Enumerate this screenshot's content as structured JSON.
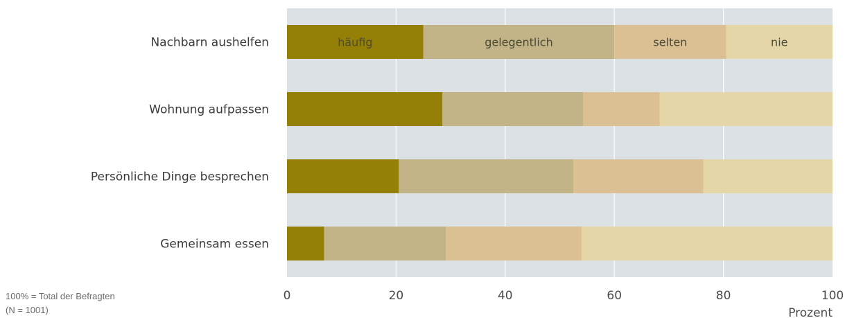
{
  "chart_data": {
    "type": "bar",
    "orientation": "horizontal",
    "stacked": true,
    "categories": [
      "Nachbarn aushelfen",
      "Wohnung aufpassen",
      "Persönliche Dinge besprechen",
      "Gemeinsam essen"
    ],
    "series": [
      {
        "name": "häufig",
        "color": "#947f07",
        "values": [
          25,
          28.5,
          20.5,
          6.8
        ]
      },
      {
        "name": "gelegentlich",
        "color": "#c2b486",
        "values": [
          35,
          25.8,
          32,
          22.3
        ]
      },
      {
        "name": "selten",
        "color": "#dbc093",
        "values": [
          20.5,
          14,
          23.8,
          24.9
        ]
      },
      {
        "name": "nie",
        "color": "#e4d6a6",
        "values": [
          19.5,
          31.7,
          23.7,
          46
        ]
      }
    ],
    "inline_labels_on_first_bar": true,
    "x_ticks": [
      0,
      20,
      40,
      60,
      80,
      100
    ],
    "xlim": [
      0,
      100
    ],
    "xlabel": "Prozent",
    "plot_background": "#dce1e6",
    "gridline_color": "#ffffff",
    "grid": true
  },
  "footnote": {
    "line1": "100% = Total der Befragten",
    "line2": "(N = 1001)"
  }
}
